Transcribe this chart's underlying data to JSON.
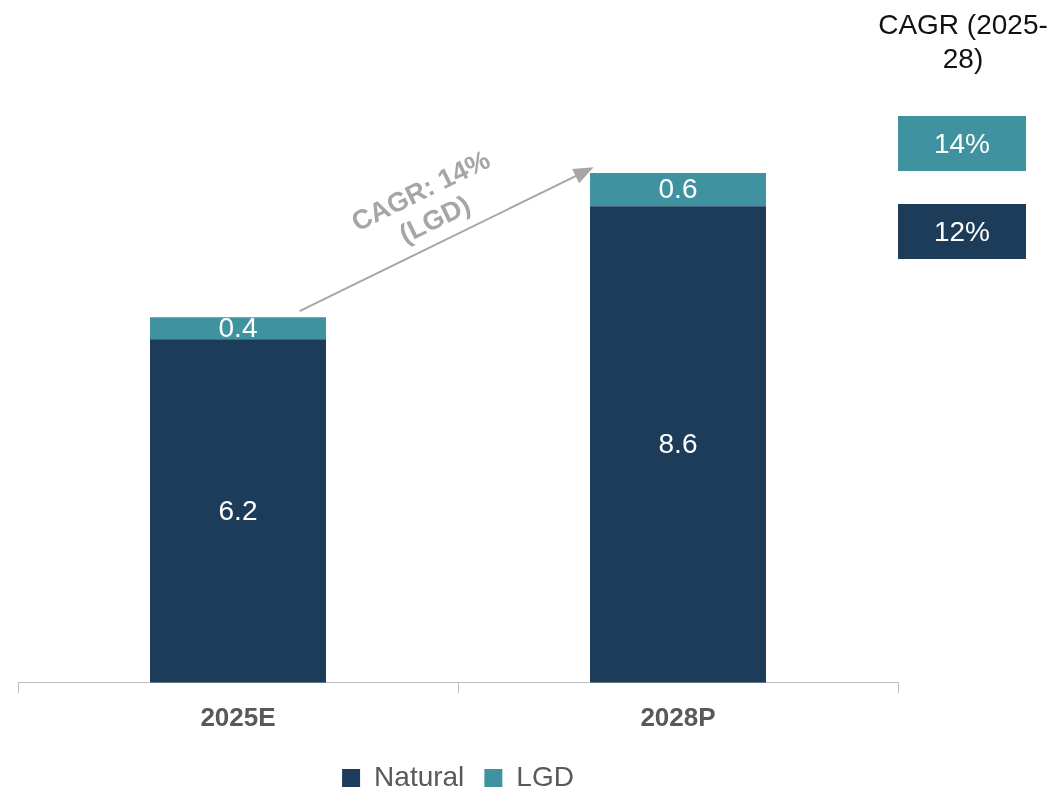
{
  "chart_data": {
    "type": "bar",
    "stacked": true,
    "categories": [
      "2025E",
      "2028P"
    ],
    "series": [
      {
        "name": "Natural",
        "color": "#1c3c5a",
        "values": [
          6.2,
          8.6
        ]
      },
      {
        "name": "LGD",
        "color": "#3f93a0",
        "values": [
          0.4,
          0.6
        ]
      }
    ],
    "data_labels": true,
    "legend": "bottom",
    "grid": false,
    "annotations": [
      "CAGR: 14% (LGD)",
      "CAGR (2025-28)",
      "14%",
      "12%"
    ]
  }
}
